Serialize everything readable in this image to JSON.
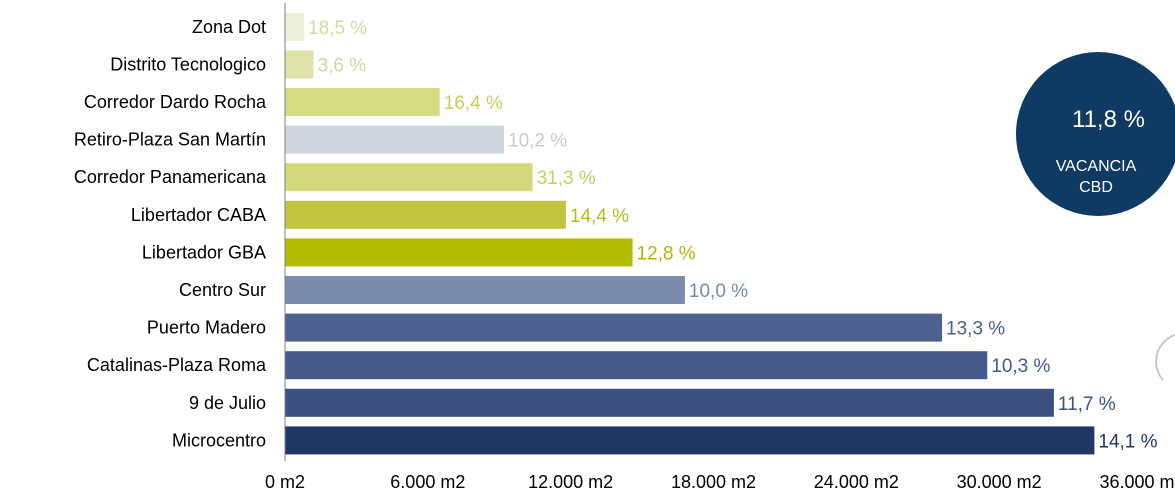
{
  "chart_data": {
    "type": "bar",
    "orientation": "horizontal",
    "categories": [
      "Zona Dot",
      "Distrito Tecnologico",
      "Corredor Dardo Rocha",
      "Retiro-Plaza San Martín",
      "Corredor Panamericana",
      "Libertador CABA",
      "Libertador GBA",
      "Centro Sur",
      "Puerto Madero",
      "Catalinas-Plaza Roma",
      "9 de Julio",
      "Microcentro"
    ],
    "values": [
      800,
      1200,
      6500,
      9200,
      10400,
      11800,
      14600,
      16800,
      27600,
      29500,
      32300,
      34000
    ],
    "labels": [
      "18,5 %",
      "3,6 %",
      "16,4 %",
      "10,2 %",
      "31,3 %",
      "14,4  %",
      "12,8 %",
      "10,0 %",
      "13,3 %",
      "10,3 %",
      "11,7 %",
      "14,1 %"
    ],
    "colors": [
      "#ecefd9",
      "#dfe3ab",
      "#d6dc84",
      "#cfd6de",
      "#d3d87d",
      "#c0c43f",
      "#b5bb00",
      "#7a8bab",
      "#4d6190",
      "#46598a",
      "#3d4f7e",
      "#203764"
    ],
    "label_colors": [
      "#d4d9a0",
      "#d1d79a",
      "#c7cd5c",
      "#c5cad5",
      "#c8ce5e",
      "#b7bd16",
      "#b0b600",
      "#7788a9",
      "#4a5e8d",
      "#455888",
      "#3d4f7e",
      "#203764"
    ],
    "title": "",
    "xlabel": "",
    "ylabel": "",
    "xlim": [
      0,
      36000
    ],
    "xticks": [
      0,
      6000,
      12000,
      18000,
      24000,
      30000,
      36000
    ],
    "xtick_labels": [
      "0 m2",
      "6.000 m2",
      "12.000 m2",
      "18.000 m2",
      "24.000 m2",
      "30.000 m2",
      "36.000 m2"
    ],
    "grid": false,
    "legend": "none"
  },
  "badge": {
    "value": "11,8 %",
    "line1": "VACANCIA",
    "line2": "CBD",
    "color": "#0e3a64"
  }
}
